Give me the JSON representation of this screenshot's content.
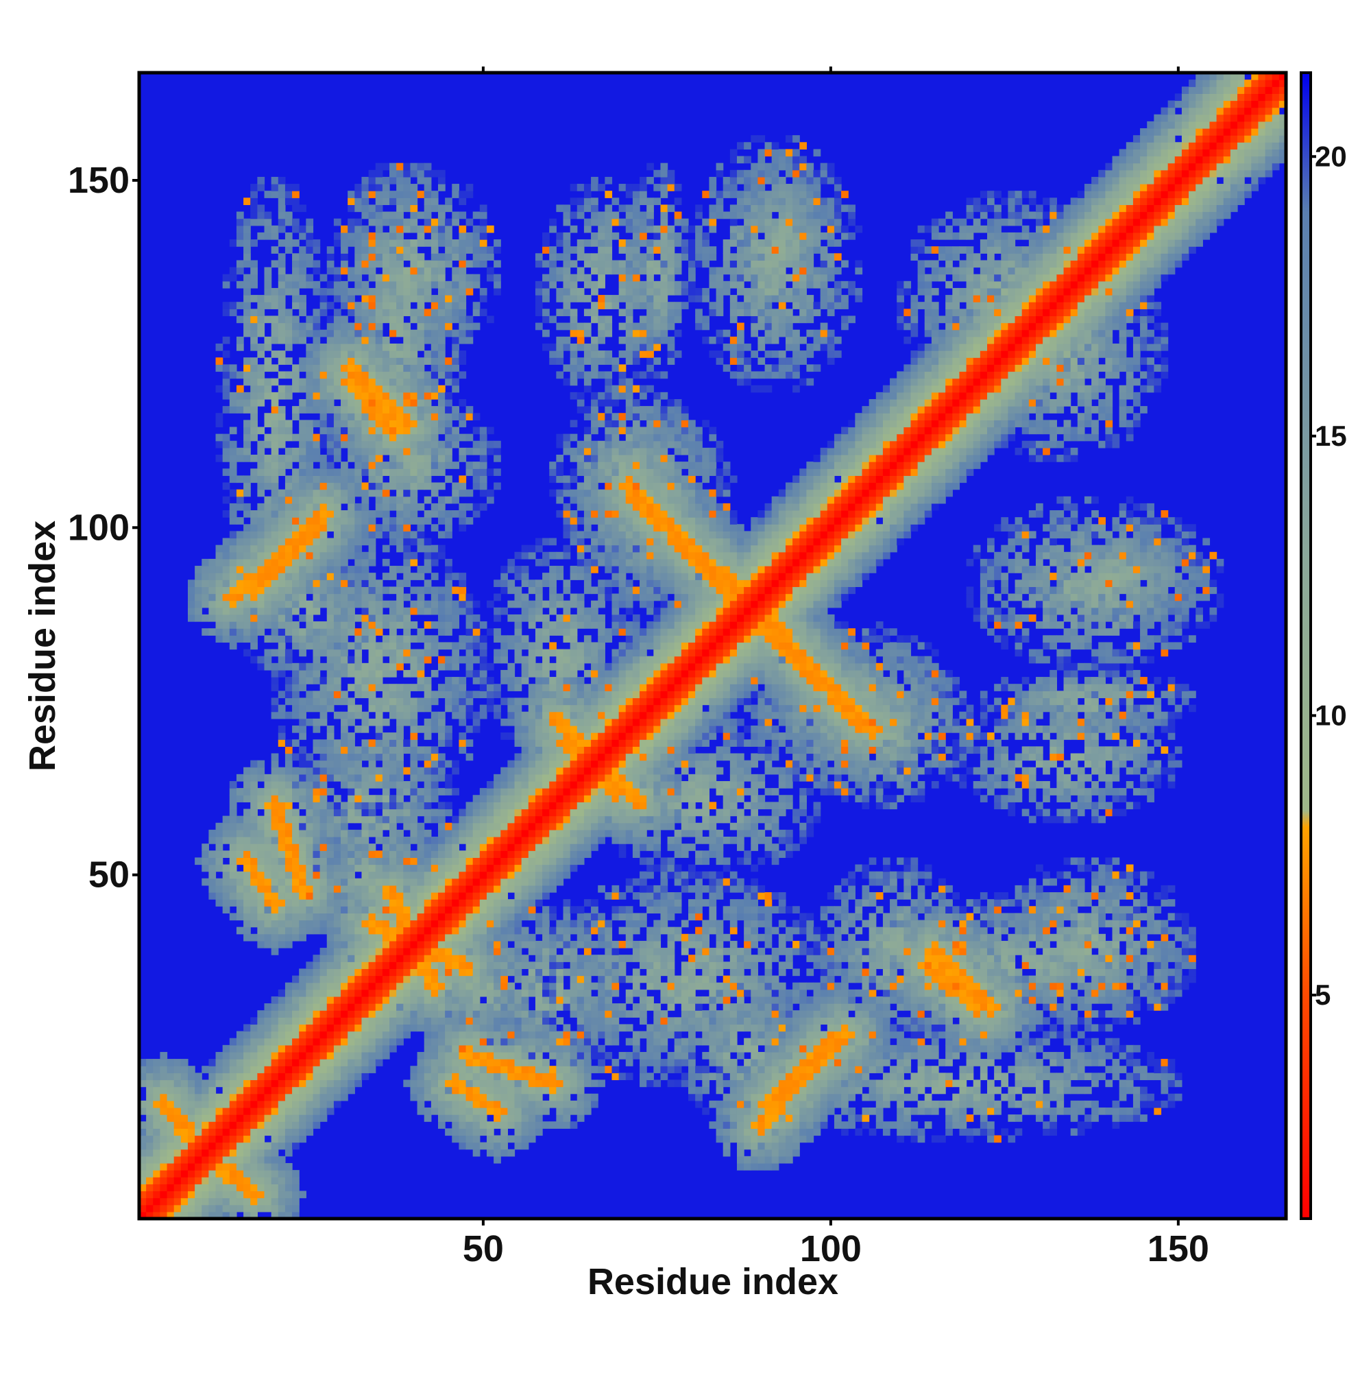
{
  "chart_data": {
    "type": "heatmap",
    "title": "",
    "xlabel": "Residue index",
    "ylabel": "Residue index",
    "xlim": [
      1,
      165
    ],
    "ylim": [
      1,
      165
    ],
    "x_ticks": [
      50,
      100,
      150
    ],
    "y_ticks": [
      50,
      100,
      150
    ],
    "grid": false,
    "value_range": [
      1,
      21
    ],
    "colorbar": {
      "position": "right",
      "ticks": [
        5,
        10,
        15,
        20
      ],
      "range": [
        1,
        21.5
      ],
      "stops": [
        {
          "value": 1,
          "color": "#ff0000"
        },
        {
          "value": 5,
          "color": "#ff4a00"
        },
        {
          "value": 8,
          "color": "#ffa200"
        },
        {
          "value": 8.3,
          "color": "#9fb88a"
        },
        {
          "value": 13,
          "color": "#8aa79a"
        },
        {
          "value": 19,
          "color": "#5a7fb0"
        },
        {
          "value": 21.5,
          "color": "#0000ee"
        }
      ]
    },
    "background_value": 21,
    "n_residues": 165,
    "matrix_symmetric": true,
    "features": [
      {
        "type": "diagonal",
        "width": 3
      },
      {
        "type": "band",
        "from": [
          10,
          10
        ],
        "to": [
          17,
          4
        ],
        "min": 7
      },
      {
        "type": "band",
        "from": [
          17,
          91
        ],
        "to": [
          27,
          102
        ],
        "min": 7
      },
      {
        "type": "band",
        "from": [
          20,
          60
        ],
        "to": [
          24,
          48
        ],
        "min": 7
      },
      {
        "type": "band",
        "from": [
          31,
          123
        ],
        "to": [
          39,
          115
        ],
        "min": 7
      },
      {
        "type": "band",
        "from": [
          46,
          20
        ],
        "to": [
          52,
          16
        ],
        "min": 7
      },
      {
        "type": "band",
        "from": [
          71,
          106
        ],
        "to": [
          86,
          90
        ],
        "min": 7
      },
      {
        "type": "band",
        "from": [
          90,
          88
        ],
        "to": [
          104,
          72
        ],
        "min": 7
      },
      {
        "type": "band",
        "from": [
          90,
          14
        ],
        "to": [
          100,
          26
        ],
        "min": 7
      },
      {
        "type": "band",
        "from": [
          114,
          37
        ],
        "to": [
          121,
          31
        ],
        "min": 7
      },
      {
        "type": "band",
        "from": [
          34,
          43
        ],
        "to": [
          47,
          37
        ],
        "min": 7
      },
      {
        "type": "band",
        "from": [
          61,
          72
        ],
        "to": [
          69,
          62
        ],
        "min": 7
      }
    ]
  }
}
